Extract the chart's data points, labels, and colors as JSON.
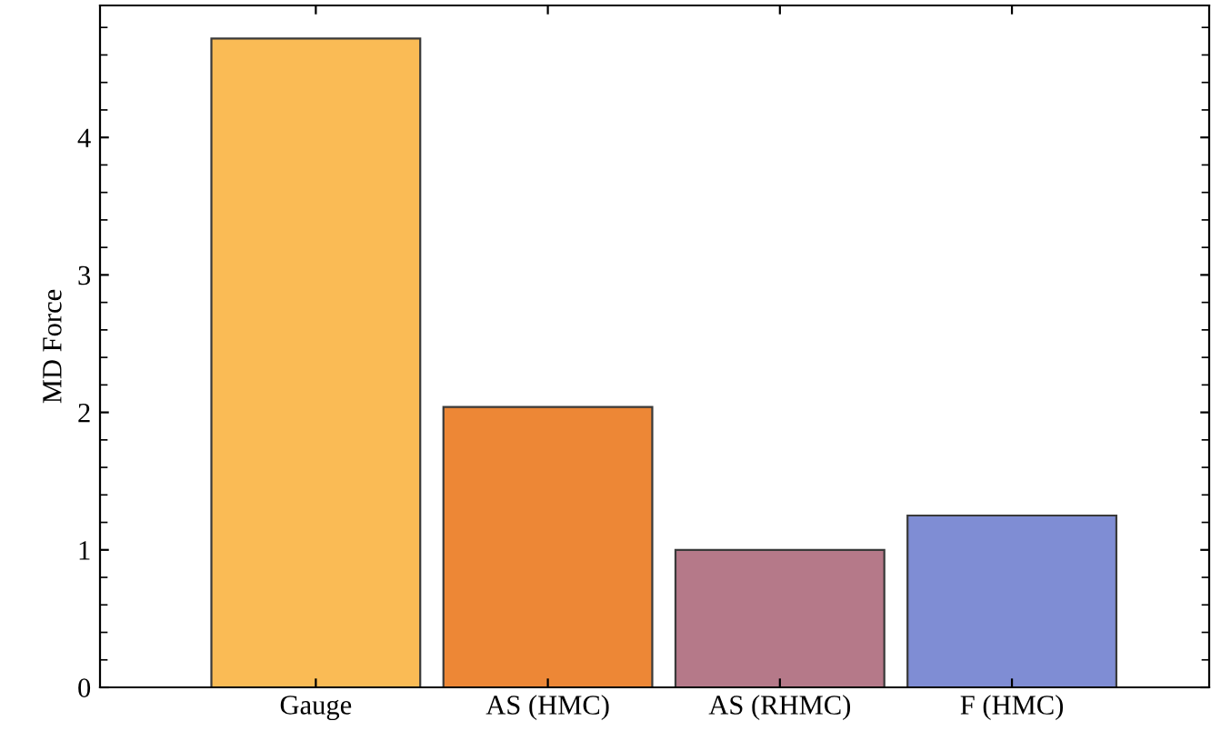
{
  "chart_data": {
    "type": "bar",
    "ylabel": "MD Force",
    "categories": [
      "Gauge",
      "AS (HMC)",
      "AS (RHMC)",
      "F (HMC)"
    ],
    "values": [
      4.72,
      2.04,
      1.0,
      1.25
    ],
    "colors": [
      "#fabb55",
      "#ed8736",
      "#b57989",
      "#7f8dd4"
    ],
    "ylim": [
      0,
      4.96
    ],
    "yticks": [
      0,
      1,
      2,
      3,
      4
    ],
    "grid": false
  }
}
